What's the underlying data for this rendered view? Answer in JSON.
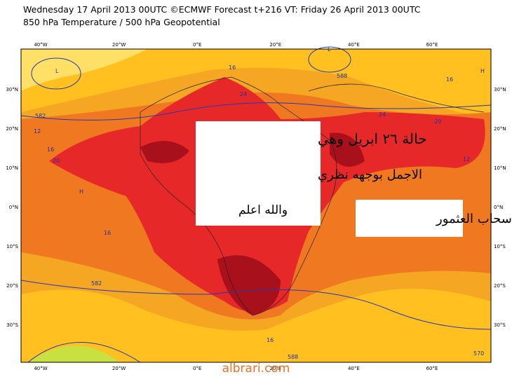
{
  "header": {
    "line1": "Wednesday 17 April 2013 00UTC ©ECMWF Forecast t+216 VT: Friday 26 April 2013 00UTC",
    "line2": "850 hPa Temperature / 500 hPa Geopotential"
  },
  "axes": {
    "lon_labels": [
      "40°W",
      "20°W",
      "0°E",
      "20°E",
      "40°E",
      "60°E"
    ],
    "lat_labels": [
      "30°N",
      "20°N",
      "10°N",
      "0°N",
      "10°S",
      "20°S",
      "30°S"
    ]
  },
  "annotations": {
    "box1": [
      "حالة ٢٦ ابريل وهي",
      "الاجمل بوجهه نظري",
      "والله اعلم"
    ],
    "box2": "سحاب العثمور"
  },
  "contour_labels": [
    "16",
    "24",
    "588",
    "582",
    "12",
    "16",
    "20",
    "24",
    "20",
    "16",
    "12",
    "582",
    "16",
    "588",
    "570",
    "16",
    "L",
    "L",
    "H",
    "H"
  ],
  "watermark": "albrari.com"
}
